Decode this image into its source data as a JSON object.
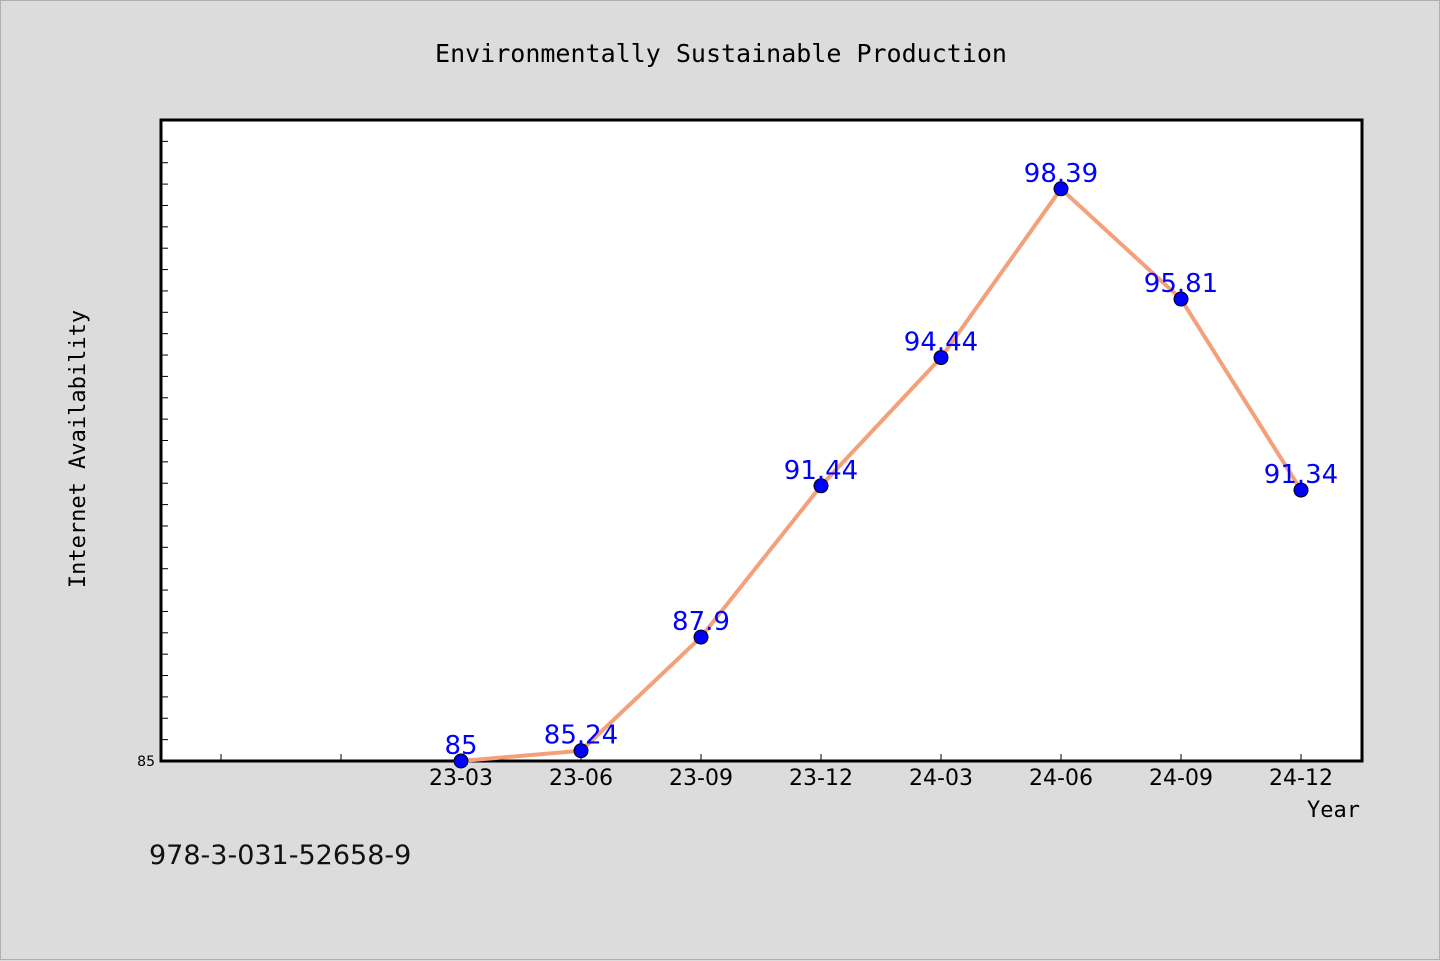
{
  "chart_data": {
    "type": "line",
    "title": "Environmentally Sustainable Production",
    "xlabel": "Year",
    "ylabel": "Internet Availability",
    "categories": [
      "23-03",
      "23-06",
      "23-09",
      "23-12",
      "24-03",
      "24-06",
      "24-09",
      "24-12"
    ],
    "series": [
      {
        "values": [
          85,
          85.24,
          87.9,
          91.44,
          94.44,
          98.39,
          95.81,
          91.34
        ],
        "labels": [
          "85",
          "85.24",
          "87.9",
          "91.44",
          "94.44",
          "98.39",
          "95.81",
          "91.34"
        ]
      }
    ],
    "ylim": [
      85,
      100
    ],
    "ytick_labels": [
      "85"
    ],
    "grid": false,
    "legend": "none",
    "colors": {
      "line": "#f4a07a",
      "marker": "#0000ff",
      "data_label": "#0000ff",
      "plot_background": "#ffffff",
      "page_background": "#dcdcdc"
    }
  },
  "footer": {
    "isbn": "978-3-031-52658-9"
  }
}
